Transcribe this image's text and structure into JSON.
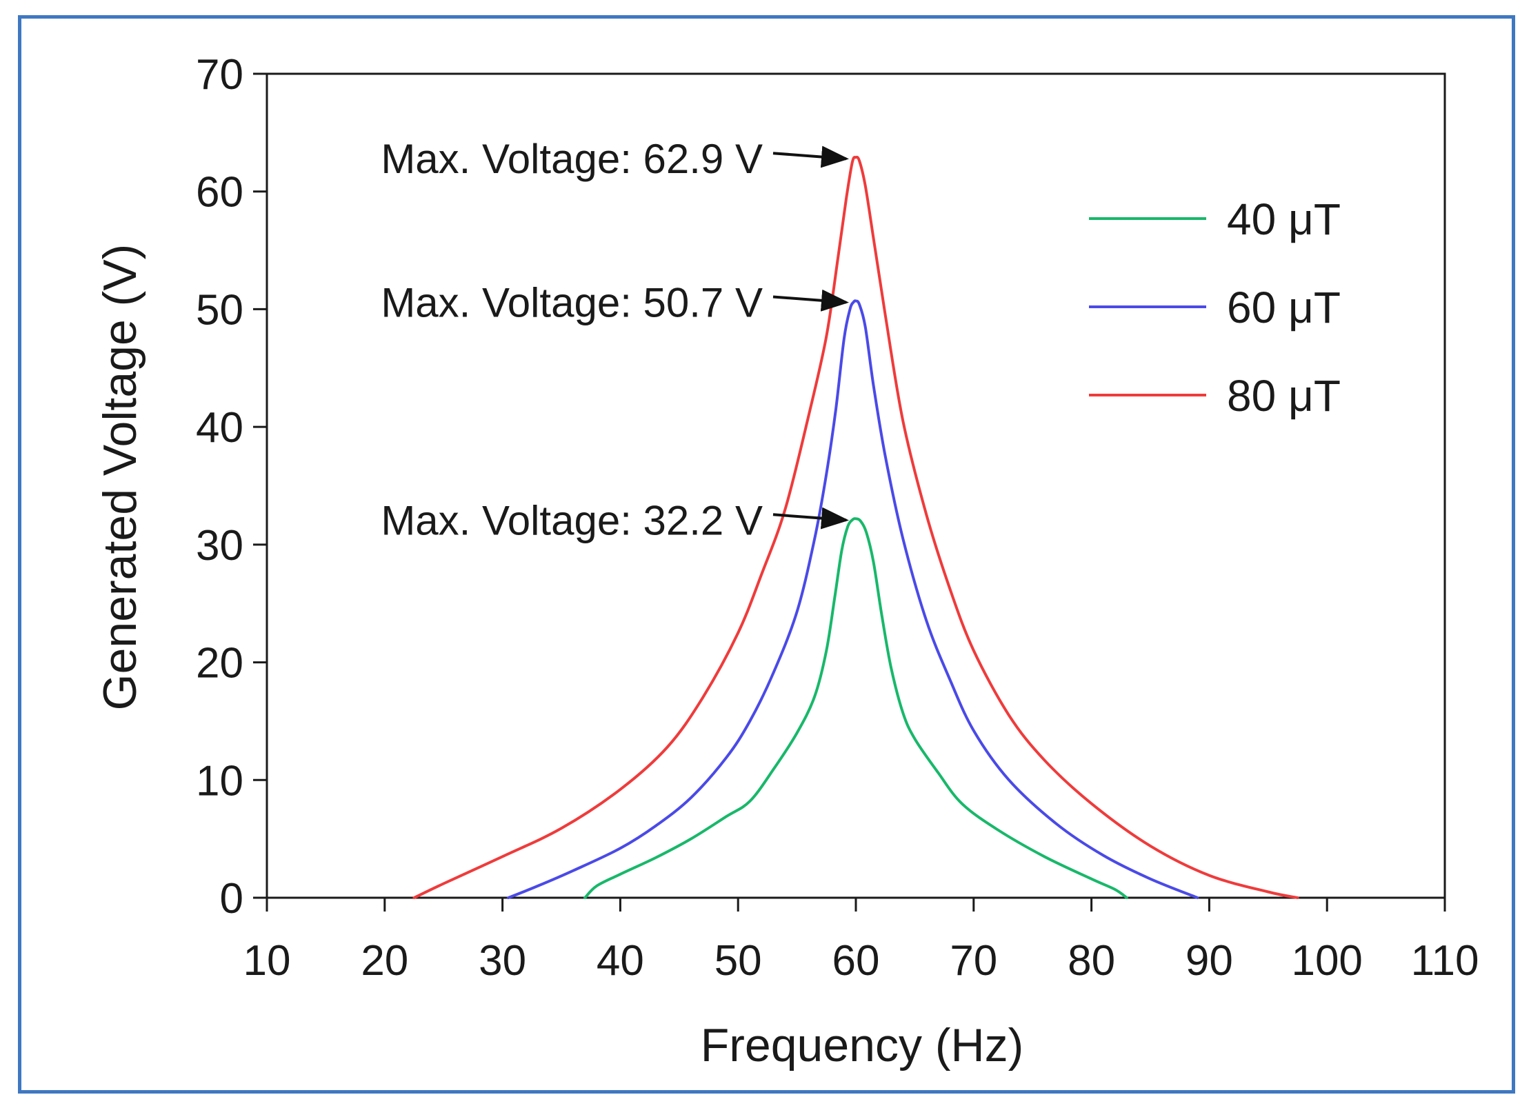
{
  "chart_data": {
    "type": "line",
    "title": "",
    "xlabel": "Frequency (Hz)",
    "ylabel": "Generated Voltage (V)",
    "xlim": [
      10,
      110
    ],
    "ylim": [
      0,
      70
    ],
    "xticks": [
      10,
      20,
      30,
      40,
      50,
      60,
      70,
      80,
      90,
      100,
      110
    ],
    "yticks": [
      0,
      10,
      20,
      30,
      40,
      50,
      60,
      70
    ],
    "grid": false,
    "legend_position": "top-right",
    "series": [
      {
        "name": "40 μT",
        "color": "#18b86a",
        "x": [
          37,
          38,
          40,
          43,
          46,
          49,
          51,
          53,
          55,
          56.5,
          57.5,
          58.2,
          58.8,
          59.3,
          59.7,
          60,
          60.4,
          60.9,
          61.5,
          62.2,
          63,
          64,
          65,
          67,
          69,
          72,
          76,
          80,
          82,
          83
        ],
        "y": [
          0,
          1,
          2,
          3.4,
          5,
          6.9,
          8.2,
          10.9,
          14,
          17.1,
          21,
          25.5,
          29.5,
          31.5,
          32.1,
          32.2,
          32,
          31,
          28.5,
          24,
          19.5,
          15.7,
          13.5,
          10.6,
          8,
          5.8,
          3.5,
          1.6,
          0.7,
          0
        ]
      },
      {
        "name": "60 μT",
        "color": "#4a4ae8",
        "x": [
          30.5,
          33,
          36,
          40,
          43,
          46,
          49,
          51,
          53,
          55,
          56.5,
          57.5,
          58.3,
          59,
          59.5,
          59.8,
          60,
          60.3,
          60.8,
          61.5,
          62.5,
          64,
          66,
          68,
          70,
          73,
          77,
          81,
          85,
          89
        ],
        "y": [
          0,
          1,
          2.3,
          4.2,
          6.1,
          8.5,
          11.9,
          15,
          19.1,
          24.3,
          30.5,
          36,
          41.5,
          47.5,
          50,
          50.6,
          50.7,
          50.4,
          48.5,
          43.5,
          37.5,
          30.5,
          23.5,
          18.5,
          14.2,
          10,
          6.3,
          3.6,
          1.6,
          0
        ]
      },
      {
        "name": "80 μT",
        "color": "#ef3b3b",
        "x": [
          22.5,
          25,
          30,
          35,
          40,
          44,
          47,
          50,
          52,
          54,
          56,
          57.5,
          58.5,
          59.2,
          59.7,
          60,
          60.3,
          60.8,
          61.5,
          62.5,
          64,
          66,
          68,
          70,
          73,
          76,
          80,
          85,
          90,
          95,
          97.5
        ],
        "y": [
          0,
          1.2,
          3.5,
          5.9,
          9.2,
          12.8,
          17,
          22.5,
          27.5,
          33,
          41,
          47.7,
          54.5,
          59.5,
          62.5,
          62.9,
          62.6,
          60.5,
          56,
          49.5,
          40.5,
          32.5,
          26.2,
          21,
          15.5,
          11.7,
          8,
          4.4,
          1.9,
          0.5,
          0
        ]
      }
    ],
    "annotations": [
      {
        "text": "Max. Voltage: 62.9 V",
        "x": 60,
        "y": 62.9,
        "series": "80 μT"
      },
      {
        "text": "Max. Voltage: 50.7 V",
        "x": 60,
        "y": 50.7,
        "series": "60 μT"
      },
      {
        "text": "Max. Voltage: 32.2 V",
        "x": 60,
        "y": 32.2,
        "series": "40 μT"
      }
    ]
  }
}
